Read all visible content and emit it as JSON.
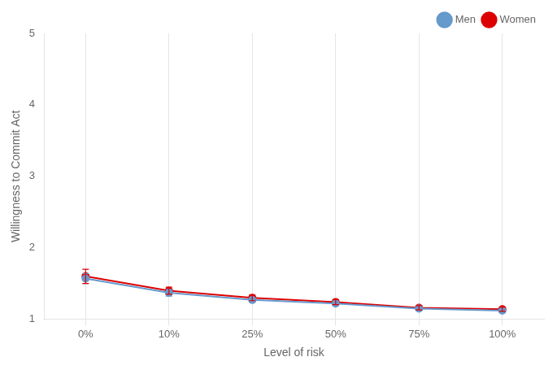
{
  "chart_data": {
    "type": "line",
    "categories": [
      "0%",
      "10%",
      "25%",
      "50%",
      "75%",
      "100%"
    ],
    "series": [
      {
        "name": "Men",
        "color": "#6699CC",
        "values": [
          1.57,
          1.37,
          1.27,
          1.22,
          1.15,
          1.12
        ],
        "yerr": [
          0.07,
          0.045,
          0.03,
          0.025,
          0.025,
          0.025
        ]
      },
      {
        "name": "Women",
        "color": "#DD0000",
        "values": [
          1.6,
          1.4,
          1.3,
          1.24,
          1.16,
          1.14
        ],
        "yerr": [
          0.1,
          0.05,
          0.04,
          0.035,
          0.03,
          0.03
        ]
      }
    ],
    "xlabel": "Level of risk",
    "ylabel": "Willingness to Commit Act",
    "ylim": [
      1.0,
      5.0
    ],
    "yticks": [
      1,
      2,
      3,
      4,
      5
    ],
    "grid": "x",
    "legend": "upper right",
    "marker": "circle"
  }
}
